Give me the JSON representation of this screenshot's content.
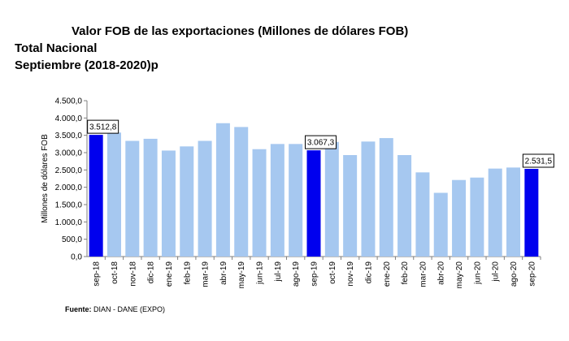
{
  "header": {
    "title": "Valor FOB de las exportaciones (Millones de dólares FOB)",
    "subtitle1": "Total Nacional",
    "subtitle2": "Septiembre (2018-2020)p"
  },
  "footer": {
    "source_label": "Fuente:",
    "source_text": "DIAN - DANE (EXPO)"
  },
  "colors": {
    "bar": "#a6c8f0",
    "highlight": "#0000ee",
    "axis": "#7f7f7f",
    "grid": "#d9d9d9"
  },
  "chart_data": {
    "type": "bar",
    "title": "",
    "ylabel": "Millones de dólares FOB",
    "xlabel": "",
    "ylim": [
      0,
      4500
    ],
    "yticks": [
      "0,0",
      "500,0",
      "1.000,0",
      "1.500,0",
      "2.000,0",
      "2.500,0",
      "3.000,0",
      "3.500,0",
      "4.000,0",
      "4.500,0"
    ],
    "categories": [
      "sep-18",
      "oct-18",
      "nov-18",
      "dic-18",
      "ene-19",
      "feb-19",
      "mar-19",
      "abr-19",
      "may-19",
      "jun-19",
      "jul-19",
      "ago-19",
      "sep-19",
      "oct-19",
      "nov-19",
      "dic-19",
      "ene-20",
      "feb-20",
      "mar-20",
      "abr-20",
      "may-20",
      "jun-20",
      "jul-20",
      "ago-20",
      "sep-20"
    ],
    "values": [
      3512.8,
      3580,
      3340,
      3400,
      3060,
      3180,
      3340,
      3850,
      3740,
      3100,
      3250,
      3250,
      3067.3,
      3310,
      2930,
      3320,
      3420,
      2930,
      2430,
      1840,
      2210,
      2280,
      2540,
      2570,
      2531.5
    ],
    "highlight_indices": [
      0,
      12,
      24
    ],
    "data_labels": [
      {
        "index": 0,
        "text": "3.512,8"
      },
      {
        "index": 12,
        "text": "3.067,3"
      },
      {
        "index": 24,
        "text": "2.531,5"
      }
    ],
    "grid": false,
    "legend": "none"
  }
}
